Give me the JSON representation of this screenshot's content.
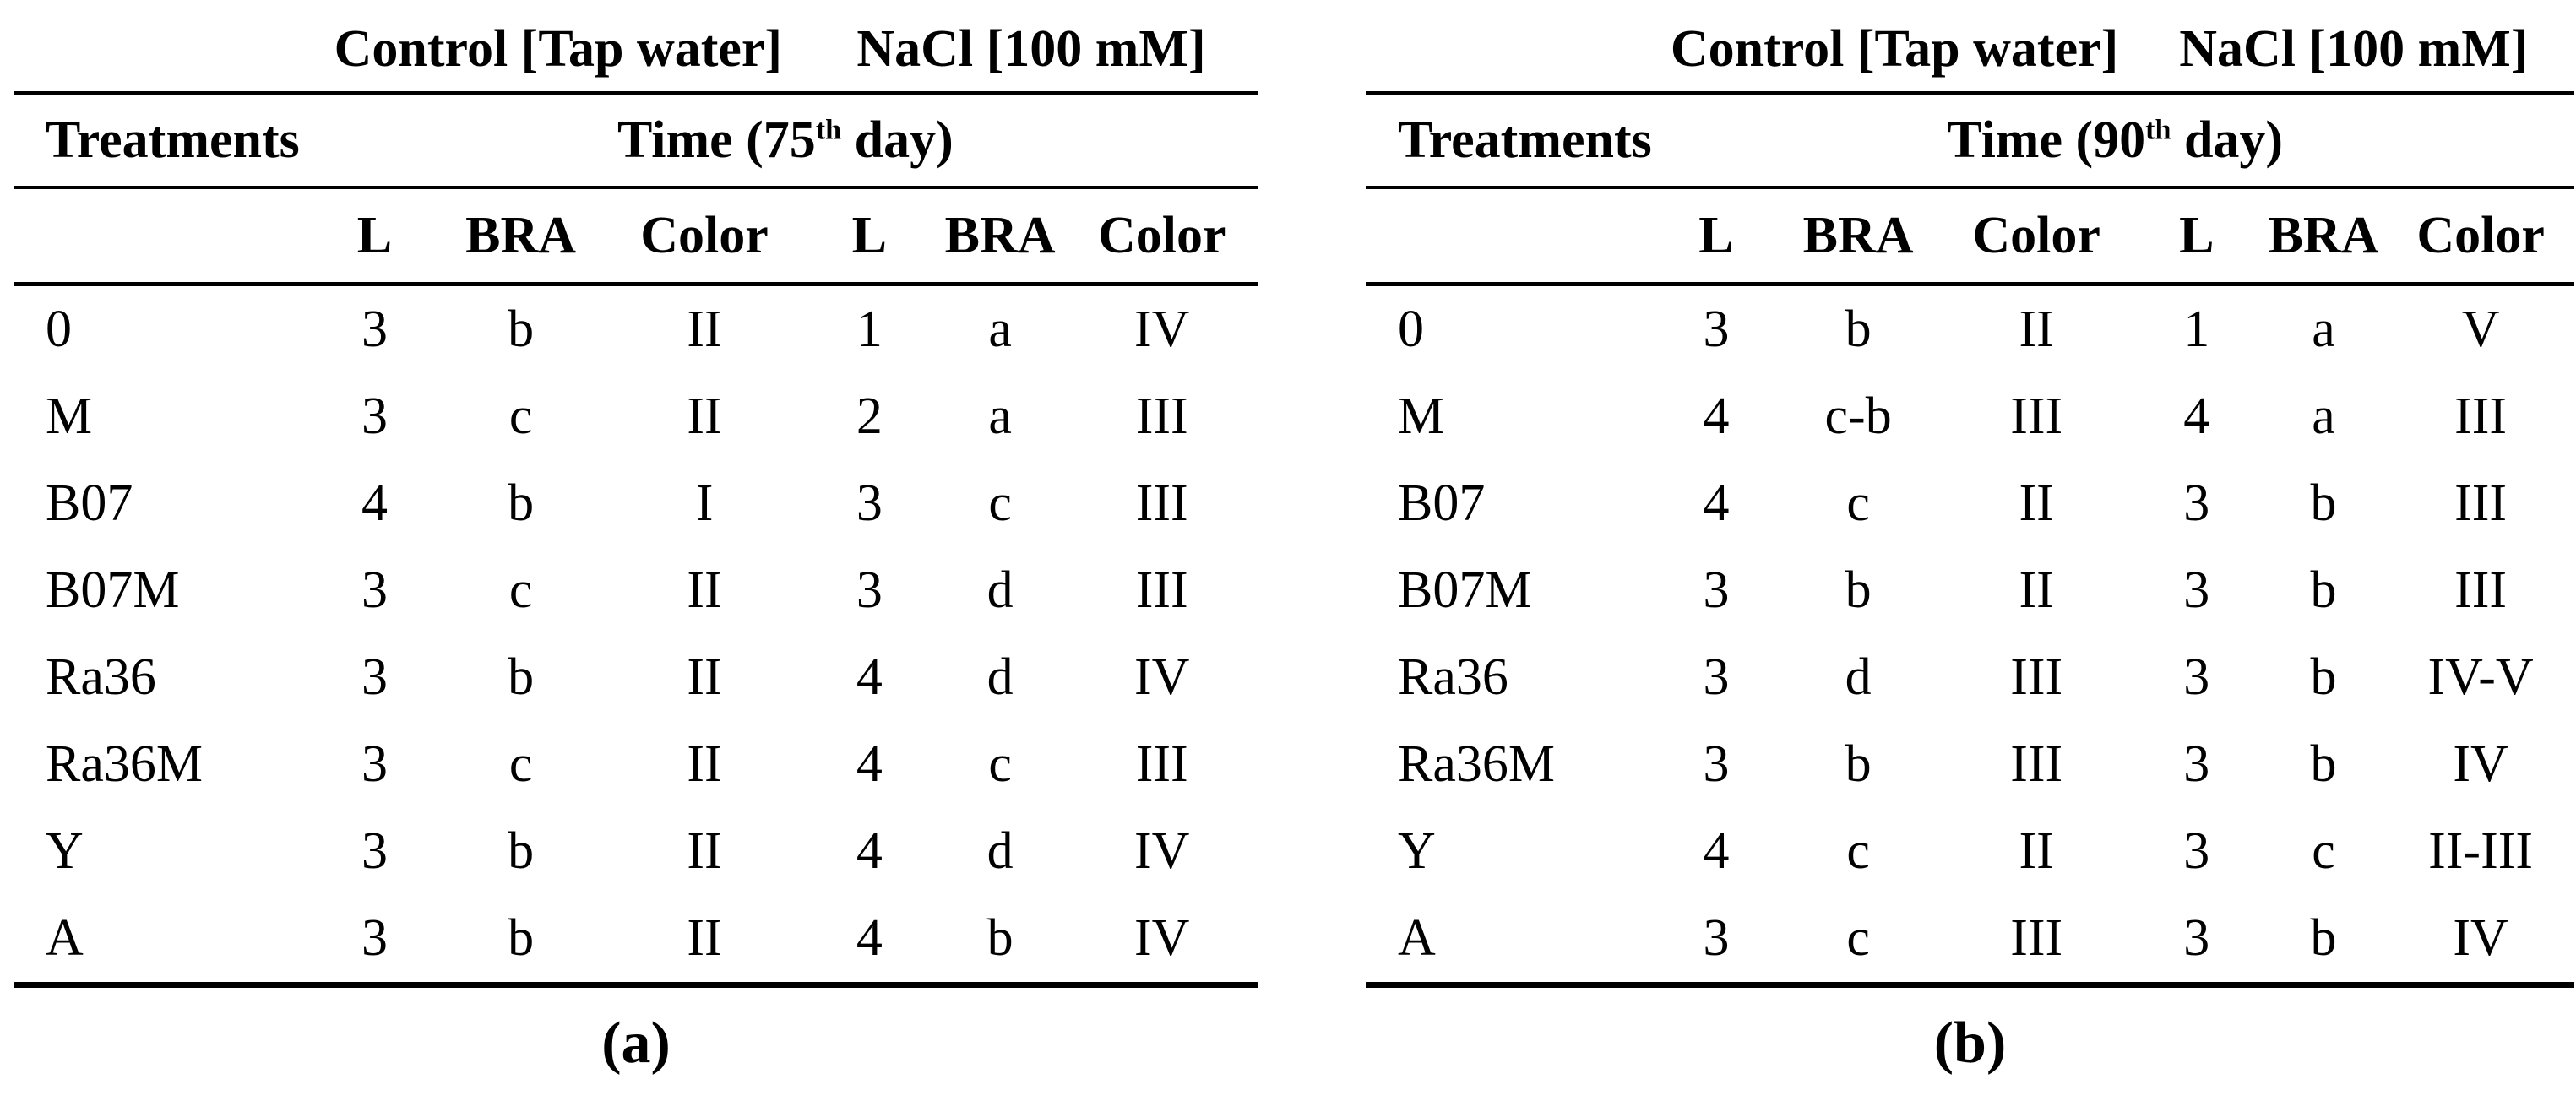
{
  "style": {
    "text_color": "#000000",
    "background_color": "#ffffff",
    "rule_color": "#000000"
  },
  "tables": [
    {
      "caption": "(a)",
      "group_headers": [
        "Control [Tap water]",
        "NaCl [100 mM]"
      ],
      "treatments_label": "Treatments",
      "time": {
        "prefix": "Time (75",
        "sup": "th",
        "suffix": " day)"
      },
      "columns": [
        "L",
        "BRA",
        "Color",
        "L",
        "BRA",
        "Color"
      ],
      "rows": [
        {
          "treatment": "0",
          "values": [
            "3",
            "b",
            "II",
            "1",
            "a",
            "IV"
          ]
        },
        {
          "treatment": "M",
          "values": [
            "3",
            "c",
            "II",
            "2",
            "a",
            "III"
          ]
        },
        {
          "treatment": "B07",
          "values": [
            "4",
            "b",
            "I",
            "3",
            "c",
            "III"
          ]
        },
        {
          "treatment": "B07M",
          "values": [
            "3",
            "c",
            "II",
            "3",
            "d",
            "III"
          ]
        },
        {
          "treatment": "Ra36",
          "values": [
            "3",
            "b",
            "II",
            "4",
            "d",
            "IV"
          ]
        },
        {
          "treatment": "Ra36M",
          "values": [
            "3",
            "c",
            "II",
            "4",
            "c",
            "III"
          ]
        },
        {
          "treatment": "Y",
          "values": [
            "3",
            "b",
            "II",
            "4",
            "d",
            "IV"
          ]
        },
        {
          "treatment": "A",
          "values": [
            "3",
            "b",
            "II",
            "4",
            "b",
            "IV"
          ]
        }
      ]
    },
    {
      "caption": "(b)",
      "group_headers": [
        "Control [Tap water]",
        "NaCl [100 mM]"
      ],
      "treatments_label": "Treatments",
      "time": {
        "prefix": "Time (90",
        "sup": "th",
        "suffix": " day)"
      },
      "columns": [
        "L",
        "BRA",
        "Color",
        "L",
        "BRA",
        "Color"
      ],
      "rows": [
        {
          "treatment": "0",
          "values": [
            "3",
            "b",
            "II",
            "1",
            "a",
            "V"
          ]
        },
        {
          "treatment": "M",
          "values": [
            "4",
            "c-b",
            "III",
            "4",
            "a",
            "III"
          ]
        },
        {
          "treatment": "B07",
          "values": [
            "4",
            "c",
            "II",
            "3",
            "b",
            "III"
          ]
        },
        {
          "treatment": "B07M",
          "values": [
            "3",
            "b",
            "II",
            "3",
            "b",
            "III"
          ]
        },
        {
          "treatment": "Ra36",
          "values": [
            "3",
            "d",
            "III",
            "3",
            "b",
            "IV-V"
          ]
        },
        {
          "treatment": "Ra36M",
          "values": [
            "3",
            "b",
            "III",
            "3",
            "b",
            "IV"
          ]
        },
        {
          "treatment": "Y",
          "values": [
            "4",
            "c",
            "II",
            "3",
            "c",
            "II-III"
          ]
        },
        {
          "treatment": "A",
          "values": [
            "3",
            "c",
            "III",
            "3",
            "b",
            "IV"
          ]
        }
      ]
    }
  ]
}
